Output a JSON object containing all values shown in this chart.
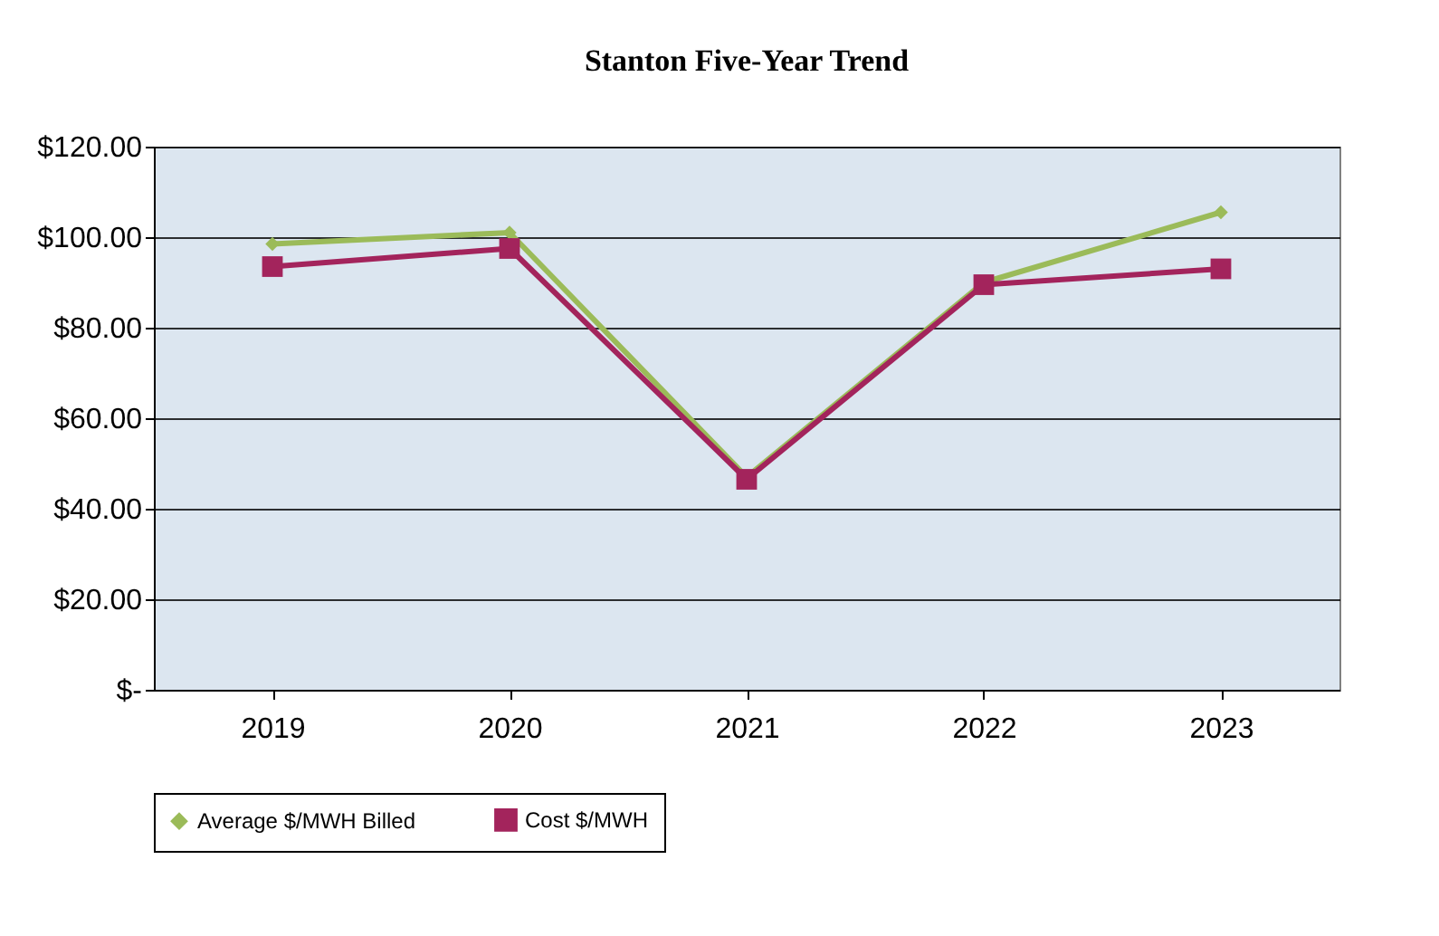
{
  "chart_data": {
    "type": "line",
    "title": "Stanton Five-Year Trend",
    "categories": [
      "2019",
      "2020",
      "2021",
      "2022",
      "2023"
    ],
    "series": [
      {
        "name": "Average $/MWH Billed",
        "color": "#9bbb59",
        "marker": "diamond",
        "values": [
          98.5,
          101,
          47,
          90,
          105.5
        ]
      },
      {
        "name": "Cost $/MWH",
        "color": "#a3245c",
        "marker": "square",
        "values": [
          93.5,
          97.5,
          46.5,
          89.5,
          93
        ]
      }
    ],
    "ylim": [
      0,
      120
    ],
    "yticks": [
      {
        "value": 0,
        "label": "$-"
      },
      {
        "value": 20,
        "label": "$20.00"
      },
      {
        "value": 40,
        "label": "$40.00"
      },
      {
        "value": 60,
        "label": "$60.00"
      },
      {
        "value": 80,
        "label": "$80.00"
      },
      {
        "value": 100,
        "label": "$100.00"
      },
      {
        "value": 120,
        "label": "$120.00"
      }
    ],
    "grid": "y",
    "legend": "bottom",
    "line_style": "solid"
  }
}
